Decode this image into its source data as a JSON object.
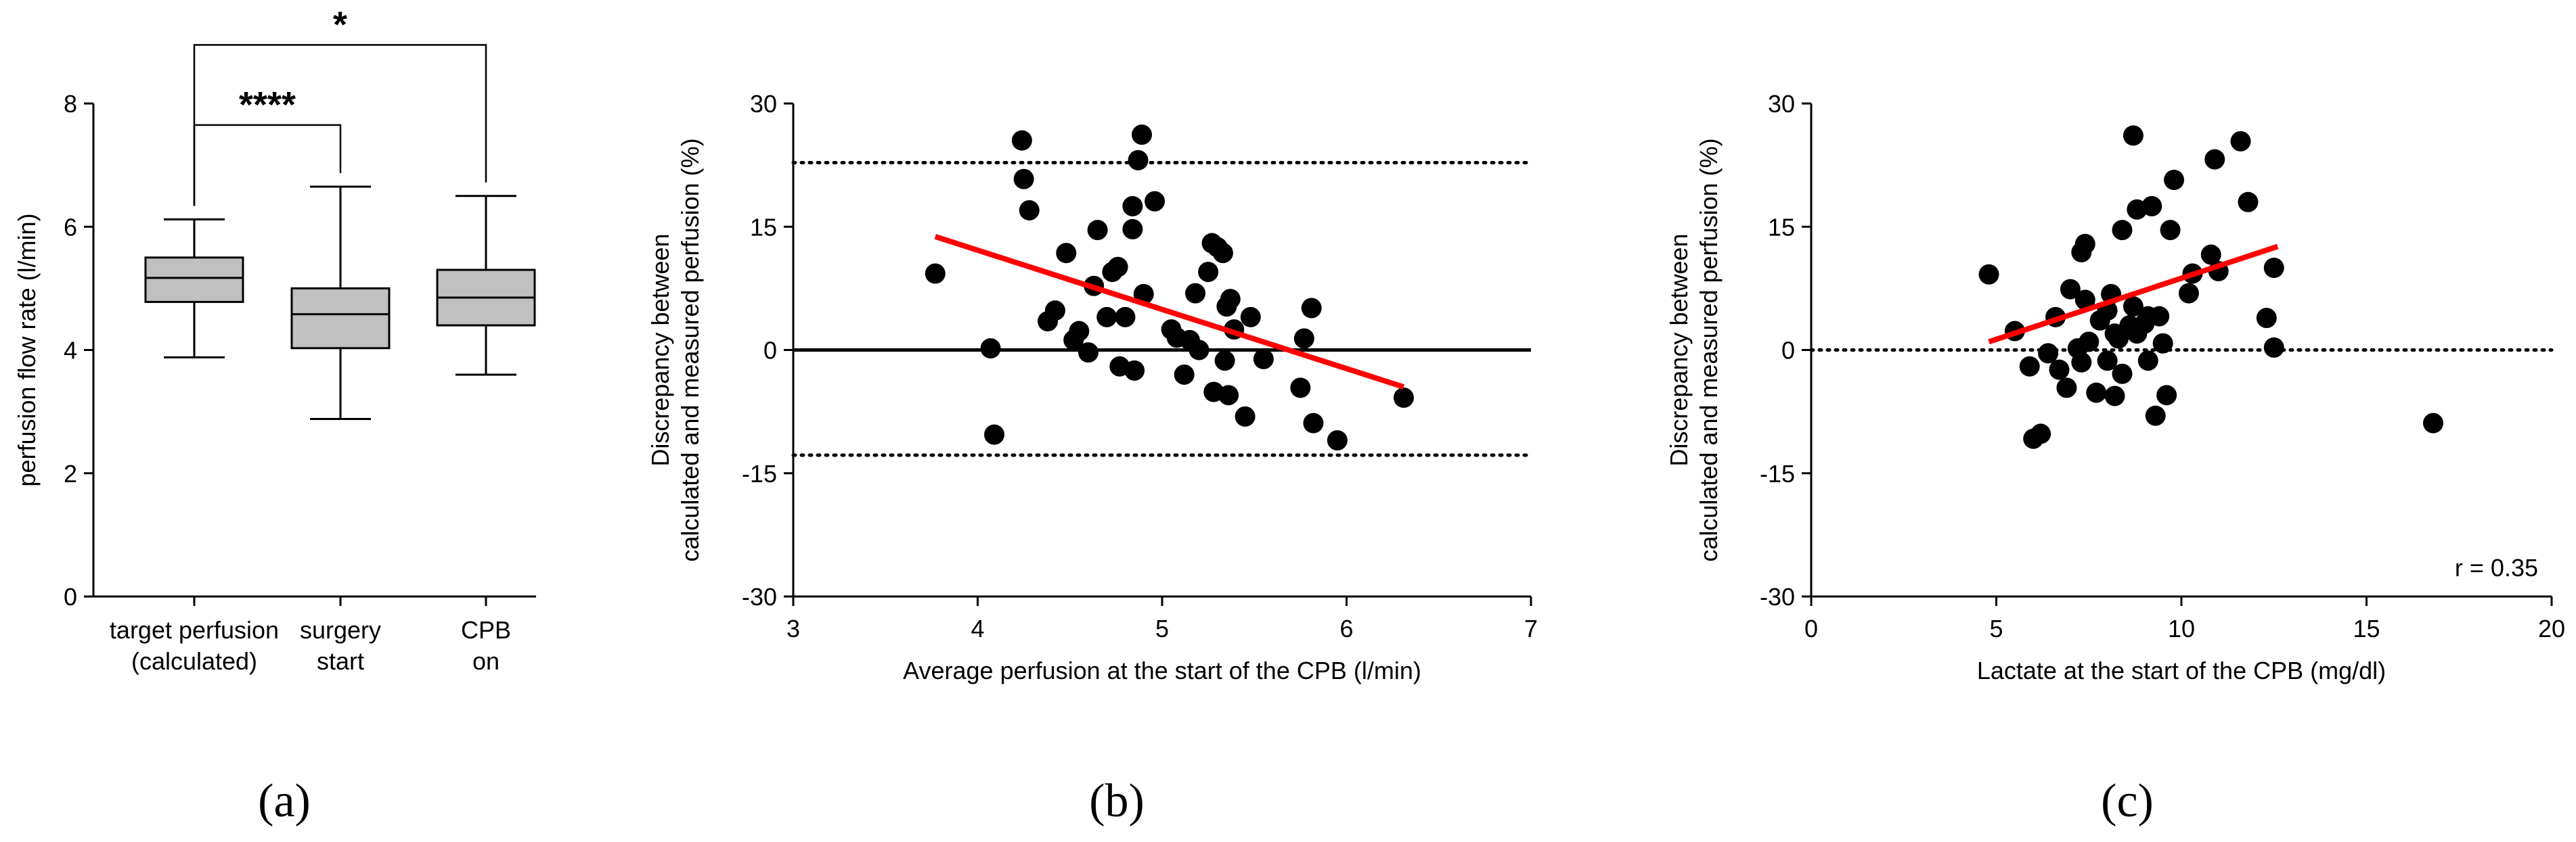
{
  "chart_data": [
    {
      "panel": "(a)",
      "type": "box",
      "ylabel": "perfusion flow rate (l/min)",
      "ylim": [
        0,
        8
      ],
      "yticks": [
        0,
        2,
        4,
        6,
        8
      ],
      "categories": [
        {
          "line1": "target perfusion",
          "line2": "(calculated)"
        },
        {
          "line1": "surgery",
          "line2": "start"
        },
        {
          "line1": "CPB",
          "line2": "on"
        }
      ],
      "boxes": [
        {
          "min": 3.88,
          "q1": 4.78,
          "median": 5.17,
          "q3": 5.5,
          "max": 6.12
        },
        {
          "min": 2.88,
          "q1": 4.03,
          "median": 4.58,
          "q3": 5.0,
          "max": 6.65
        },
        {
          "min": 3.6,
          "q1": 4.4,
          "median": 4.85,
          "q3": 5.3,
          "max": 6.5
        }
      ],
      "significance": [
        {
          "from": 0,
          "to": 2,
          "label": "*",
          "y": 8.95
        },
        {
          "from": 0,
          "to": 1,
          "label": "****",
          "y": 7.65
        }
      ],
      "box_color": "#c0c0c0"
    },
    {
      "panel": "(b)",
      "type": "scatter",
      "xlabel": "Average perfusion at the start of the CPB (l/min)",
      "ylabel_line1": "Discrepancy between",
      "ylabel_line2": "calculated and measured perfusion (%)",
      "xlim": [
        3,
        7
      ],
      "ylim": [
        -30,
        30
      ],
      "xticks": [
        3,
        4,
        5,
        6,
        7
      ],
      "yticks": [
        30,
        15,
        0,
        -15,
        -30
      ],
      "points": [
        [
          3.77,
          9.3
        ],
        [
          4.07,
          0.2
        ],
        [
          4.09,
          -10.3
        ],
        [
          4.24,
          25.5
        ],
        [
          4.25,
          20.8
        ],
        [
          4.28,
          17.0
        ],
        [
          4.38,
          3.5
        ],
        [
          4.42,
          4.8
        ],
        [
          4.48,
          11.8
        ],
        [
          4.52,
          1.2
        ],
        [
          4.55,
          2.3
        ],
        [
          4.6,
          -0.3
        ],
        [
          4.63,
          7.8
        ],
        [
          4.65,
          14.6
        ],
        [
          4.7,
          4.0
        ],
        [
          4.73,
          9.5
        ],
        [
          4.76,
          10.1
        ],
        [
          4.77,
          -2.0
        ],
        [
          4.8,
          4.0
        ],
        [
          4.84,
          14.7
        ],
        [
          4.84,
          17.5
        ],
        [
          4.85,
          -2.5
        ],
        [
          4.87,
          23.1
        ],
        [
          4.89,
          26.2
        ],
        [
          4.9,
          6.8
        ],
        [
          4.96,
          18.1
        ],
        [
          5.05,
          2.5
        ],
        [
          5.08,
          1.5
        ],
        [
          5.12,
          -3.0
        ],
        [
          5.15,
          1.2
        ],
        [
          5.18,
          6.9
        ],
        [
          5.2,
          0.0
        ],
        [
          5.25,
          9.5
        ],
        [
          5.27,
          13.0
        ],
        [
          5.28,
          -5.1
        ],
        [
          5.3,
          12.5
        ],
        [
          5.33,
          11.8
        ],
        [
          5.34,
          -1.3
        ],
        [
          5.35,
          5.3
        ],
        [
          5.36,
          -5.5
        ],
        [
          5.37,
          6.2
        ],
        [
          5.39,
          2.5
        ],
        [
          5.45,
          -8.1
        ],
        [
          5.48,
          4.0
        ],
        [
          5.55,
          -1.1
        ],
        [
          5.75,
          -4.6
        ],
        [
          5.77,
          1.4
        ],
        [
          5.81,
          5.1
        ],
        [
          5.82,
          -8.9
        ],
        [
          5.95,
          -11.0
        ],
        [
          6.31,
          -5.8
        ]
      ],
      "reference_lines": [
        22.8,
        0,
        -12.8
      ],
      "regression": {
        "x": [
          3.77,
          6.31
        ],
        "y": [
          13.8,
          -4.5
        ]
      },
      "point_color": "#000000",
      "line_color": "#ff0000"
    },
    {
      "panel": "(c)",
      "type": "scatter",
      "xlabel": "Lactate at the start of the CPB (mg/dl)",
      "ylabel_line1": "Discrepancy between",
      "ylabel_line2": "calculated and measured perfusion (%)",
      "xlim": [
        0,
        20
      ],
      "ylim": [
        -30,
        30
      ],
      "xticks": [
        0,
        5,
        10,
        15,
        20
      ],
      "yticks": [
        30,
        15,
        0,
        -15,
        -30
      ],
      "annotation": "r = 0.35",
      "points": [
        [
          4.8,
          9.2
        ],
        [
          5.5,
          2.3
        ],
        [
          5.9,
          -2.0
        ],
        [
          6.0,
          -10.8
        ],
        [
          6.2,
          -10.2
        ],
        [
          6.4,
          -0.4
        ],
        [
          6.6,
          4.0
        ],
        [
          6.7,
          -2.4
        ],
        [
          6.9,
          -4.6
        ],
        [
          7.0,
          7.4
        ],
        [
          7.2,
          0.2
        ],
        [
          7.3,
          -1.5
        ],
        [
          7.3,
          11.9
        ],
        [
          7.4,
          6.1
        ],
        [
          7.4,
          12.9
        ],
        [
          7.5,
          1.0
        ],
        [
          7.7,
          -5.2
        ],
        [
          7.8,
          3.6
        ],
        [
          8.0,
          4.8
        ],
        [
          8.0,
          -1.3
        ],
        [
          8.1,
          6.8
        ],
        [
          8.2,
          2.0
        ],
        [
          8.2,
          -5.6
        ],
        [
          8.3,
          1.4
        ],
        [
          8.4,
          14.6
        ],
        [
          8.4,
          -2.9
        ],
        [
          8.6,
          3.0
        ],
        [
          8.7,
          5.3
        ],
        [
          8.7,
          26.1
        ],
        [
          8.8,
          17.1
        ],
        [
          8.8,
          2.0
        ],
        [
          9.0,
          3.2
        ],
        [
          9.1,
          4.1
        ],
        [
          9.1,
          -1.3
        ],
        [
          9.2,
          17.5
        ],
        [
          9.3,
          -8.0
        ],
        [
          9.4,
          4.1
        ],
        [
          9.5,
          0.8
        ],
        [
          9.6,
          -5.5
        ],
        [
          9.7,
          14.6
        ],
        [
          9.8,
          20.7
        ],
        [
          10.2,
          6.9
        ],
        [
          10.3,
          9.3
        ],
        [
          10.8,
          11.6
        ],
        [
          10.9,
          23.2
        ],
        [
          11.0,
          9.6
        ],
        [
          11.6,
          25.4
        ],
        [
          11.8,
          18.0
        ],
        [
          12.3,
          3.9
        ],
        [
          12.5,
          10.0
        ],
        [
          12.5,
          0.3
        ],
        [
          16.8,
          -8.9
        ]
      ],
      "reference_lines": [
        0
      ],
      "regression": {
        "x": [
          4.8,
          12.6
        ],
        "y": [
          1.0,
          12.6
        ]
      },
      "point_color": "#000000",
      "line_color": "#ff0000"
    }
  ]
}
